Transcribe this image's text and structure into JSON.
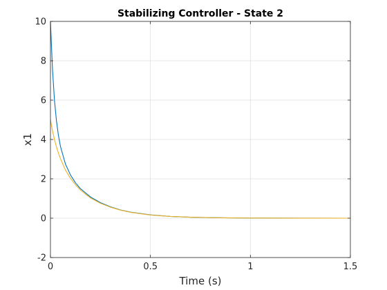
{
  "chart_data": {
    "type": "line",
    "title": "Stabilizing Controller - State 2",
    "xlabel": "Time (s)",
    "ylabel": "x1",
    "xlim": [
      0,
      1.5
    ],
    "ylim": [
      -2,
      10
    ],
    "xticks": [
      0,
      0.5,
      1,
      1.5
    ],
    "xtick_labels": [
      "0",
      "0.5",
      "1",
      "1.5"
    ],
    "yticks": [
      -2,
      0,
      2,
      4,
      6,
      8,
      10
    ],
    "ytick_labels": [
      "-2",
      "0",
      "2",
      "4",
      "6",
      "8",
      "10"
    ],
    "grid": true,
    "legend": "none",
    "series": [
      {
        "color": "#0072BD",
        "x": [
          0,
          0.01,
          0.02,
          0.03,
          0.04,
          0.05,
          0.075,
          0.1,
          0.125,
          0.15,
          0.2,
          0.25,
          0.3,
          0.35,
          0.4,
          0.5,
          0.6,
          0.7,
          0.8,
          0.9,
          1.0,
          1.25,
          1.5
        ],
        "y": [
          10.0,
          7.6,
          6.0,
          4.95,
          4.2,
          3.65,
          2.75,
          2.2,
          1.8,
          1.5,
          1.08,
          0.79,
          0.58,
          0.42,
          0.31,
          0.17,
          0.09,
          0.05,
          0.03,
          0.015,
          0.008,
          0.002,
          0.0
        ]
      },
      {
        "color": "#EDB120",
        "x": [
          0,
          0.01,
          0.02,
          0.03,
          0.04,
          0.05,
          0.075,
          0.1,
          0.125,
          0.15,
          0.2,
          0.25,
          0.3,
          0.35,
          0.4,
          0.5,
          0.6,
          0.7,
          0.8,
          0.9,
          1.0,
          1.25,
          1.5
        ],
        "y": [
          5.0,
          4.45,
          4.0,
          3.62,
          3.3,
          3.02,
          2.45,
          2.03,
          1.7,
          1.43,
          1.03,
          0.76,
          0.56,
          0.41,
          0.3,
          0.16,
          0.09,
          0.05,
          0.03,
          0.015,
          0.008,
          0.002,
          0.0
        ]
      }
    ]
  }
}
